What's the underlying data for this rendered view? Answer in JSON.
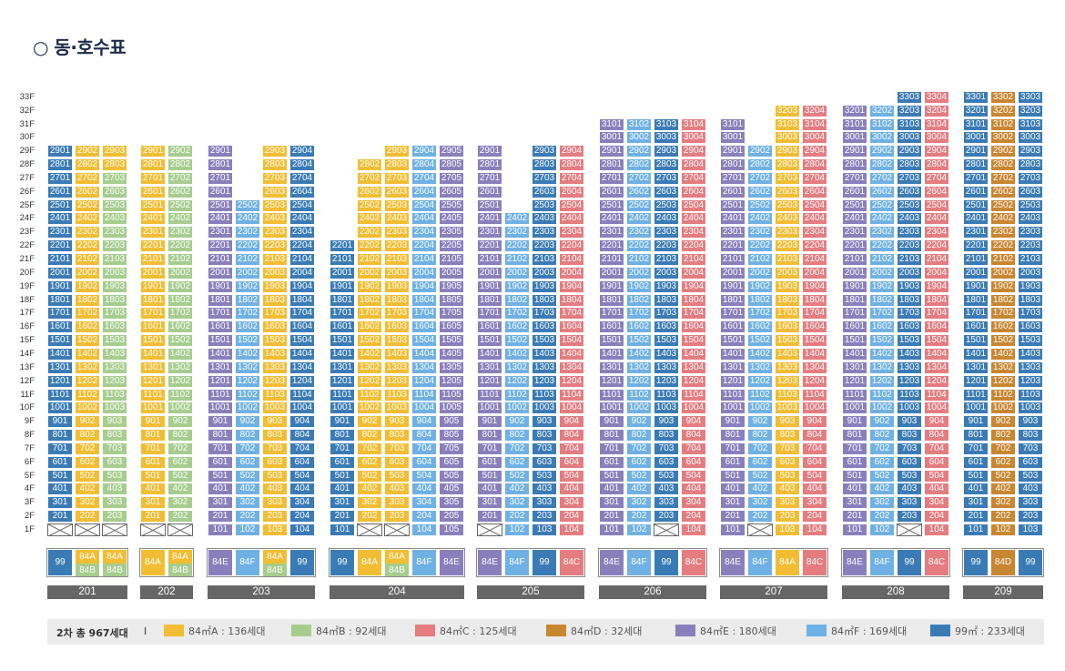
{
  "title": "○ 동·호수표",
  "colors": {
    "84A": "#f2bd32",
    "84B": "#a6cd8e",
    "84C": "#e57c80",
    "84D": "#c98631",
    "84E": "#8a7fbd",
    "84F": "#6fb1e4",
    "99": "#3a7bb6"
  },
  "floors": [
    "33F",
    "32F",
    "31F",
    "30F",
    "29F",
    "28F",
    "27F",
    "26F",
    "25F",
    "24F",
    "23F",
    "22F",
    "21F",
    "20F",
    "19F",
    "18F",
    "17F",
    "16F",
    "15F",
    "14F",
    "13F",
    "12F",
    "11F",
    "10F",
    "9F",
    "8F",
    "7F",
    "6F",
    "5F",
    "4F",
    "3F",
    "2F",
    "1F"
  ],
  "buildings": [
    {
      "name": "201",
      "lines": [
        {
          "label": "99",
          "type": "99",
          "top": 29,
          "first": 1
        },
        {
          "label": "84A",
          "type": "84A",
          "top": 29,
          "first": 1,
          "sub": "84B",
          "subFloors": [
            27,
            25,
            23,
            21,
            19,
            17,
            15,
            13,
            11,
            9,
            7,
            5,
            3
          ],
          "subIsTop": false
        },
        {
          "label": "84B",
          "type": "84B",
          "top": 29,
          "first": 1,
          "alt": "84A",
          "altFloors": [
            29,
            28
          ]
        }
      ]
    },
    {
      "name": "202",
      "lines": [
        {
          "label": "84A",
          "type": "84A",
          "top": 29,
          "first": 1
        },
        {
          "label": "84B",
          "type": "84B",
          "top": 29,
          "first": 1
        }
      ]
    },
    {
      "name": "203",
      "lines": [
        {
          "label": "84E",
          "type": "84E",
          "top": 29,
          "first": 1
        },
        {
          "label": "84F",
          "type": "84F",
          "top": 25,
          "first": 1
        },
        {
          "label": "84A",
          "type": "84A",
          "top": 29,
          "first": 1
        },
        {
          "label": "99",
          "type": "99",
          "top": 29,
          "first": 1
        }
      ]
    },
    {
      "name": "204",
      "lines": [
        {
          "label": "99",
          "type": "99",
          "top": 22,
          "first": 1
        },
        {
          "label": "84A",
          "type": "84A",
          "top": 28,
          "first": 1
        },
        {
          "label": "84A",
          "type": "84A",
          "top": 29,
          "first": 1
        },
        {
          "label": "84F",
          "type": "84F",
          "top": 29,
          "first": 1
        },
        {
          "label": "84E",
          "type": "84E",
          "top": 29,
          "first": 1
        }
      ]
    },
    {
      "name": "205",
      "lines": [
        {
          "label": "84E",
          "type": "84E",
          "top": 29,
          "first": 1
        },
        {
          "label": "84F",
          "type": "84F",
          "top": 24,
          "first": 1
        },
        {
          "label": "99",
          "type": "99",
          "top": 29,
          "first": 1
        },
        {
          "label": "84C",
          "type": "84C",
          "top": 29,
          "first": 1
        }
      ]
    },
    {
      "name": "206",
      "lines": [
        {
          "label": "84E",
          "type": "84E",
          "top": 31,
          "first": 1
        },
        {
          "label": "84F",
          "type": "84F",
          "top": 31,
          "first": 1
        },
        {
          "label": "99",
          "type": "99",
          "top": 31,
          "first": 1
        },
        {
          "label": "84C",
          "type": "84C",
          "top": 31,
          "first": 1
        }
      ]
    },
    {
      "name": "207",
      "lines": [
        {
          "label": "84E",
          "type": "84E",
          "top": 31,
          "first": 1
        },
        {
          "label": "84F",
          "type": "84F",
          "top": 29,
          "first": 1
        },
        {
          "label": "84A",
          "type": "84A",
          "top": 32,
          "first": 1
        },
        {
          "label": "84C",
          "type": "84C",
          "top": 32,
          "first": 1
        }
      ]
    },
    {
      "name": "208",
      "lines": [
        {
          "label": "84E",
          "type": "84E",
          "top": 32,
          "first": 1
        },
        {
          "label": "84F",
          "type": "84F",
          "top": 32,
          "first": 1
        },
        {
          "label": "99",
          "type": "99",
          "top": 33,
          "first": 1
        },
        {
          "label": "84C",
          "type": "84C",
          "top": 33,
          "first": 1
        }
      ]
    },
    {
      "name": "209",
      "lines": [
        {
          "label": "99",
          "type": "99",
          "top": 33,
          "first": 1
        },
        {
          "label": "84D",
          "type": "84D",
          "top": 33,
          "first": 1
        },
        {
          "label": "99",
          "type": "99",
          "top": 33,
          "first": 1
        }
      ]
    }
  ],
  "legend": {
    "title": "2차 총 967세대",
    "separator": "I",
    "items": [
      {
        "type": "84A",
        "label": "84㎡A : 136세대"
      },
      {
        "type": "84B",
        "label": "84㎡B : 92세대"
      },
      {
        "type": "84C",
        "label": "84㎡C : 125세대"
      },
      {
        "type": "84D",
        "label": "84㎡D : 32세대"
      },
      {
        "type": "84E",
        "label": "84㎡E : 180세대"
      },
      {
        "type": "84F",
        "label": "84㎡F : 169세대"
      },
      {
        "type": "99",
        "label": "99㎡ : 233세대"
      }
    ]
  }
}
